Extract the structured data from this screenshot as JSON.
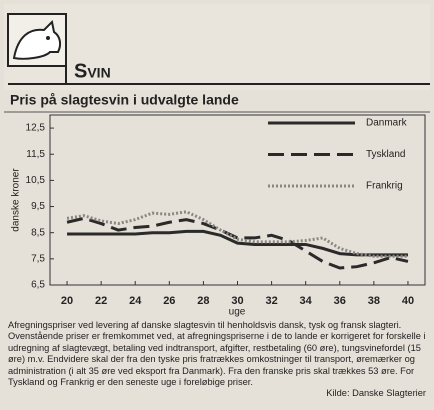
{
  "section": "Svin",
  "chart_data": {
    "type": "line",
    "title": "Pris på slagtesvin i udvalgte lande",
    "x_label": "uge",
    "y_label": "danske kroner",
    "x": [
      20,
      21,
      22,
      23,
      24,
      25,
      26,
      27,
      28,
      29,
      30,
      31,
      32,
      33,
      34,
      35,
      36,
      37,
      38,
      39,
      40
    ],
    "series": [
      {
        "name": "Danmark",
        "color": "#2a2a2a",
        "style": "solid",
        "values": [
          8.45,
          8.45,
          8.45,
          8.45,
          8.45,
          8.5,
          8.5,
          8.55,
          8.55,
          8.4,
          8.1,
          8.05,
          8.05,
          8.05,
          8.05,
          7.9,
          7.7,
          7.65,
          7.65,
          7.65,
          7.65
        ]
      },
      {
        "name": "Tyskland",
        "color": "#2a2a2a",
        "style": "dashed",
        "values": [
          8.9,
          9.05,
          8.85,
          8.6,
          8.7,
          8.75,
          8.9,
          9.0,
          8.85,
          8.6,
          8.3,
          8.3,
          8.4,
          8.2,
          7.8,
          7.4,
          7.15,
          7.2,
          7.35,
          7.55,
          7.4
        ]
      },
      {
        "name": "Frankrig",
        "color": "#8a8680",
        "style": "dotted",
        "values": [
          9.05,
          9.15,
          8.95,
          8.85,
          9.0,
          9.25,
          9.2,
          9.3,
          9.0,
          8.6,
          8.25,
          8.15,
          8.15,
          8.15,
          8.2,
          8.3,
          7.9,
          7.7,
          7.6,
          7.6,
          7.6
        ]
      }
    ],
    "xlim": [
      19,
      41
    ],
    "ylim": [
      6.5,
      13
    ],
    "xticks": [
      20,
      22,
      24,
      26,
      28,
      30,
      32,
      34,
      36,
      38,
      40
    ],
    "yticks": [
      {
        "value": 6.5,
        "label": "6,5"
      },
      {
        "value": 7.5,
        "label": "7,5"
      },
      {
        "value": 8.5,
        "label": "8,5"
      },
      {
        "value": 9.5,
        "label": "9,5"
      },
      {
        "value": 10.5,
        "label": "10,5"
      },
      {
        "value": 11.5,
        "label": "11,5"
      },
      {
        "value": 12.5,
        "label": "12,5"
      }
    ],
    "grid": false,
    "legend": "upper right",
    "note": "Afregningspriser ved levering af danske slagtesvin til henholdsvis dansk, tysk og fransk slagteri. Ovenstående priser er fremkommet ved, at afregningspriserne i de to lande er korrigeret for forskelle i udregning af slagtevægt, betaling ved indtransport, afgifter, restbetaling (60 øre), tungsvinefordel (15 øre) m.v. Endvidere skal der fra den tyske pris fratrækkes omkostninger til transport, øremærker og administration (i alt 35 øre ved eksport fra Danmark). Fra den franske pris skal trækkes 53 øre. For Tyskland og Frankrig er den seneste uge i foreløbige priser.",
    "source": "Kilde: Danske Slagterier"
  }
}
